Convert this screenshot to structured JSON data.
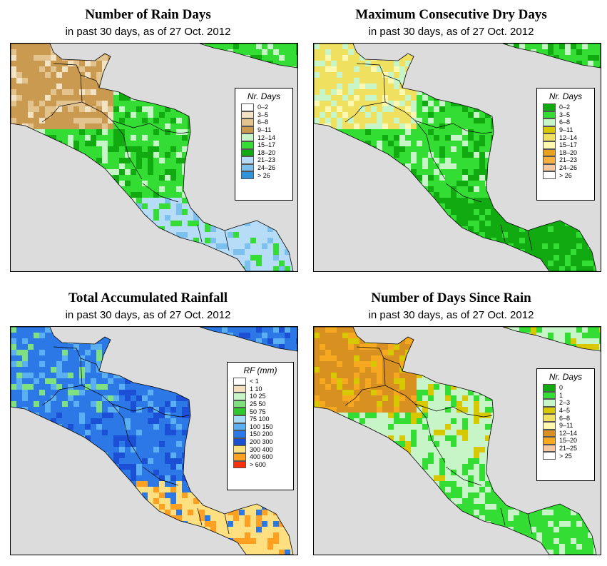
{
  "panels": [
    {
      "id": "rain-days",
      "title": "Number of Rain Days",
      "subtitle": "in past 30 days, as of  27 Oct. 2012",
      "legend": {
        "title": "Nr. Days",
        "items": [
          {
            "label": "0–2",
            "color": "#ffffff"
          },
          {
            "label": "3–5",
            "color": "#f1e3c4"
          },
          {
            "label": "6–8",
            "color": "#e3c48e"
          },
          {
            "label": "9–11",
            "color": "#c99a4f"
          },
          {
            "label": "12–14",
            "color": "#c8f5c8"
          },
          {
            "label": "15–17",
            "color": "#33dd33"
          },
          {
            "label": "18–20",
            "color": "#11aa11"
          },
          {
            "label": "21–23",
            "color": "#b6dcf7"
          },
          {
            "label": "24–26",
            "color": "#7cc0ee"
          },
          {
            "label": "> 26",
            "color": "#2f94dc"
          }
        ]
      },
      "base_color": "#33dd33"
    },
    {
      "id": "dry-days",
      "title": "Maximum Consecutive Dry Days",
      "subtitle": "in past 30 days, as of  27 Oct. 2012",
      "legend": {
        "title": "Nr. Days",
        "items": [
          {
            "label": "0–2",
            "color": "#11aa11"
          },
          {
            "label": "3–5",
            "color": "#33dd33"
          },
          {
            "label": "6–8",
            "color": "#c8f5c8"
          },
          {
            "label": "9–11",
            "color": "#d8c800"
          },
          {
            "label": "12–14",
            "color": "#f0e060"
          },
          {
            "label": "15–17",
            "color": "#fff8b0"
          },
          {
            "label": "18–20",
            "color": "#e7a020"
          },
          {
            "label": "21–23",
            "color": "#f5b040"
          },
          {
            "label": "24–26",
            "color": "#f5c8a0"
          },
          {
            "label": "> 26",
            "color": "#ffffff"
          }
        ]
      },
      "base_color": "#33dd33"
    },
    {
      "id": "rainfall",
      "title": "Total Accumulated Rainfall",
      "subtitle": "in past 30 days, as of  27 Oct. 2012",
      "legend": {
        "title": "RF (mm)",
        "items": [
          {
            "label": "< 1",
            "color": "#ffffff"
          },
          {
            "label": "1   10",
            "color": "#f3dfbb"
          },
          {
            "label": "10   25",
            "color": "#c8f5c8"
          },
          {
            "label": "25   50",
            "color": "#7ee07e"
          },
          {
            "label": "50   75",
            "color": "#2ec82e"
          },
          {
            "label": "75   100",
            "color": "#a8dcf5"
          },
          {
            "label": "100   150",
            "color": "#5ab0f0"
          },
          {
            "label": "150   200",
            "color": "#2b78e6"
          },
          {
            "label": "200   300",
            "color": "#1a4fd6"
          },
          {
            "label": "300   400",
            "color": "#ffe080"
          },
          {
            "label": "400   600",
            "color": "#ffa020"
          },
          {
            "label": "> 600",
            "color": "#ff3000"
          }
        ]
      },
      "base_color": "#2b78e6"
    },
    {
      "id": "since-rain",
      "title": "Number of Days Since Rain",
      "subtitle": "in past 30 days, as of  27 Oct. 2012",
      "legend": {
        "title": "Nr. Days",
        "items": [
          {
            "label": "0",
            "color": "#11aa11"
          },
          {
            "label": "1",
            "color": "#33dd33"
          },
          {
            "label": "2–3",
            "color": "#c8f5c8"
          },
          {
            "label": "4–5",
            "color": "#d8c800"
          },
          {
            "label": "6–8",
            "color": "#f0e060"
          },
          {
            "label": "9–11",
            "color": "#fff8b0"
          },
          {
            "label": "12–14",
            "color": "#d89020"
          },
          {
            "label": "15–20",
            "color": "#f5a820"
          },
          {
            "label": "21–25",
            "color": "#f5c8a0"
          },
          {
            "label": "> 25",
            "color": "#ffffff"
          }
        ]
      },
      "base_color": "#c8f5c8"
    }
  ]
}
